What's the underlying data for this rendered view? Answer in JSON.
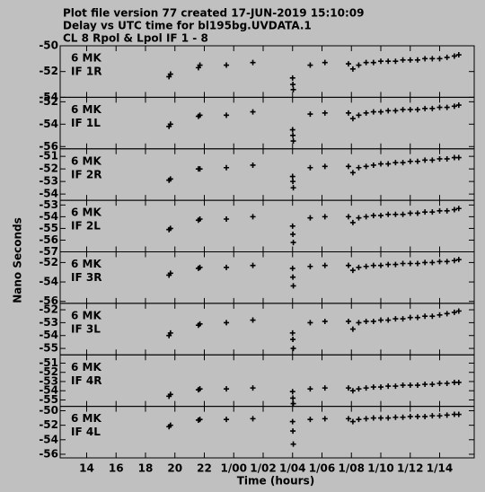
{
  "header": {
    "lines": [
      "Plot file version 77  created 17-JUN-2019 15:10:09",
      "Delay vs UTC time for bl195bg.UVDATA.1",
      "CL 8  Rpol & Lpol  IF 1 - 8"
    ]
  },
  "ylabel": "Nano Seconds",
  "xlabel": "Time (hours)",
  "chart_data": [
    {
      "type": "scatter",
      "annotations": [
        "6 MK",
        "IF 1R"
      ],
      "xlim": [
        12.2,
        40.35
      ],
      "ylim": [
        -54,
        -50
      ],
      "yticks": [
        -50,
        -52,
        -54
      ],
      "x": [
        19.6,
        19.7,
        21.6,
        21.7,
        23.5,
        25.3,
        28.0,
        28.02,
        28.05,
        29.2,
        30.2,
        31.8,
        32.1,
        32.5,
        33.0,
        33.5,
        34.0,
        34.5,
        35.0,
        35.5,
        36.0,
        36.5,
        37.0,
        37.5,
        38.0,
        38.5,
        39.0,
        39.3
      ],
      "values": [
        -52.4,
        -52.2,
        -51.7,
        -51.5,
        -51.5,
        -51.3,
        -52.5,
        -53.0,
        -53.4,
        -51.5,
        -51.3,
        -51.4,
        -51.8,
        -51.5,
        -51.3,
        -51.3,
        -51.2,
        -51.2,
        -51.2,
        -51.1,
        -51.1,
        -51.1,
        -51.0,
        -51.0,
        -51.0,
        -50.9,
        -50.8,
        -50.7
      ]
    },
    {
      "type": "scatter",
      "annotations": [
        "6 MK",
        "IF 1L"
      ],
      "xlim": [
        12.2,
        40.35
      ],
      "ylim": [
        -56.2,
        -51.6
      ],
      "yticks": [
        -52,
        -54,
        -56
      ],
      "x": [
        19.6,
        19.7,
        21.6,
        21.7,
        23.5,
        25.3,
        28.0,
        28.02,
        28.05,
        29.2,
        30.2,
        31.8,
        32.1,
        32.5,
        33.0,
        33.5,
        34.0,
        34.5,
        35.0,
        35.5,
        36.0,
        36.5,
        37.0,
        37.5,
        38.0,
        38.5,
        39.0,
        39.3
      ],
      "values": [
        -54.2,
        -54.0,
        -53.3,
        -53.2,
        -53.2,
        -52.9,
        -54.5,
        -55.0,
        -55.5,
        -53.1,
        -53.0,
        -53.0,
        -53.5,
        -53.2,
        -53.0,
        -52.9,
        -52.9,
        -52.8,
        -52.8,
        -52.7,
        -52.7,
        -52.7,
        -52.6,
        -52.6,
        -52.5,
        -52.5,
        -52.4,
        -52.3
      ]
    },
    {
      "type": "scatter",
      "annotations": [
        "6 MK",
        "IF 2R"
      ],
      "xlim": [
        12.2,
        40.35
      ],
      "ylim": [
        -54.5,
        -50.4
      ],
      "yticks": [
        -51,
        -52,
        -53,
        -54
      ],
      "x": [
        19.6,
        19.7,
        21.6,
        21.7,
        23.5,
        25.3,
        28.0,
        28.02,
        28.05,
        29.2,
        30.2,
        31.8,
        32.1,
        32.5,
        33.0,
        33.5,
        34.0,
        34.5,
        35.0,
        35.5,
        36.0,
        36.5,
        37.0,
        37.5,
        38.0,
        38.5,
        39.0,
        39.3
      ],
      "values": [
        -52.9,
        -52.8,
        -52.0,
        -52.0,
        -51.9,
        -51.7,
        -52.6,
        -53.0,
        -53.5,
        -51.9,
        -51.8,
        -51.8,
        -52.3,
        -51.9,
        -51.8,
        -51.7,
        -51.6,
        -51.6,
        -51.5,
        -51.5,
        -51.4,
        -51.4,
        -51.3,
        -51.3,
        -51.2,
        -51.2,
        -51.1,
        -51.1
      ]
    },
    {
      "type": "scatter",
      "annotations": [
        "6 MK",
        "IF 2L"
      ],
      "xlim": [
        12.2,
        40.35
      ],
      "ylim": [
        -57,
        -52.6
      ],
      "yticks": [
        -53,
        -54,
        -55,
        -56,
        -57
      ],
      "x": [
        19.6,
        19.7,
        21.6,
        21.7,
        23.5,
        25.3,
        28.0,
        28.02,
        28.05,
        29.2,
        30.2,
        31.8,
        32.1,
        32.5,
        33.0,
        33.5,
        34.0,
        34.5,
        35.0,
        35.5,
        36.0,
        36.5,
        37.0,
        37.5,
        38.0,
        38.5,
        39.0,
        39.3
      ],
      "values": [
        -55.1,
        -55.0,
        -54.3,
        -54.2,
        -54.2,
        -54.0,
        -54.8,
        -55.5,
        -56.2,
        -54.1,
        -54.0,
        -54.0,
        -54.5,
        -54.1,
        -54.0,
        -53.9,
        -53.9,
        -53.8,
        -53.8,
        -53.8,
        -53.7,
        -53.7,
        -53.6,
        -53.6,
        -53.5,
        -53.5,
        -53.4,
        -53.3
      ]
    },
    {
      "type": "scatter",
      "annotations": [
        "6 MK",
        "IF 3R"
      ],
      "xlim": [
        12.2,
        40.35
      ],
      "ylim": [
        -56.2,
        -50.9
      ],
      "yticks": [
        -52,
        -54,
        -56
      ],
      "x": [
        19.6,
        19.7,
        21.6,
        21.7,
        23.5,
        25.3,
        28.0,
        28.02,
        28.05,
        29.2,
        30.2,
        31.8,
        32.1,
        32.5,
        33.0,
        33.5,
        34.0,
        34.5,
        35.0,
        35.5,
        36.0,
        36.5,
        37.0,
        37.5,
        38.0,
        38.5,
        39.0,
        39.3
      ],
      "values": [
        -53.3,
        -53.1,
        -52.6,
        -52.5,
        -52.5,
        -52.3,
        -52.6,
        -53.5,
        -54.4,
        -52.4,
        -52.3,
        -52.3,
        -52.8,
        -52.5,
        -52.4,
        -52.3,
        -52.3,
        -52.2,
        -52.2,
        -52.1,
        -52.1,
        -52.1,
        -52.0,
        -52.0,
        -51.9,
        -51.9,
        -51.8,
        -51.7
      ]
    },
    {
      "type": "scatter",
      "annotations": [
        "6 MK",
        "IF 3L"
      ],
      "xlim": [
        12.2,
        40.35
      ],
      "ylim": [
        -55.5,
        -51.5
      ],
      "yticks": [
        -52,
        -53,
        -54,
        -55
      ],
      "x": [
        19.6,
        19.7,
        21.6,
        21.7,
        23.5,
        25.3,
        28.0,
        28.02,
        28.05,
        29.2,
        30.2,
        31.8,
        32.1,
        32.5,
        33.0,
        33.5,
        34.0,
        34.5,
        35.0,
        35.5,
        36.0,
        36.5,
        37.0,
        37.5,
        38.0,
        38.5,
        39.0,
        39.3
      ],
      "values": [
        -54.0,
        -53.8,
        -53.2,
        -53.1,
        -53.0,
        -52.8,
        -53.8,
        -54.3,
        -55.0,
        -53.0,
        -52.9,
        -52.9,
        -53.5,
        -53.0,
        -52.9,
        -52.9,
        -52.8,
        -52.8,
        -52.7,
        -52.7,
        -52.6,
        -52.6,
        -52.5,
        -52.5,
        -52.4,
        -52.3,
        -52.2,
        -52.1
      ]
    },
    {
      "type": "scatter",
      "annotations": [
        "6 MK",
        "IF 4R"
      ],
      "xlim": [
        12.2,
        40.35
      ],
      "ylim": [
        -55.7,
        -50.1
      ],
      "yticks": [
        -51,
        -52,
        -53,
        -54,
        -55
      ],
      "x": [
        19.6,
        19.7,
        21.6,
        21.7,
        23.5,
        25.3,
        28.0,
        28.02,
        28.05,
        29.2,
        30.2,
        31.8,
        32.1,
        32.5,
        33.0,
        33.5,
        34.0,
        34.5,
        35.0,
        35.5,
        36.0,
        36.5,
        37.0,
        37.5,
        38.0,
        38.5,
        39.0,
        39.3
      ],
      "values": [
        -54.6,
        -54.4,
        -53.9,
        -53.8,
        -53.8,
        -53.7,
        -54.1,
        -54.8,
        -55.4,
        -53.8,
        -53.7,
        -53.7,
        -54.0,
        -53.8,
        -53.7,
        -53.6,
        -53.6,
        -53.5,
        -53.5,
        -53.4,
        -53.4,
        -53.4,
        -53.3,
        -53.3,
        -53.2,
        -53.2,
        -53.1,
        -53.1
      ]
    },
    {
      "type": "scatter",
      "annotations": [
        "6 MK",
        "IF 4L"
      ],
      "xlim": [
        12.2,
        40.35
      ],
      "ylim": [
        -56.5,
        -49.4
      ],
      "yticks": [
        -50,
        -52,
        -54,
        -56
      ],
      "xticks": [
        {
          "value": 14,
          "label": "14"
        },
        {
          "value": 16,
          "label": "16"
        },
        {
          "value": 18,
          "label": "18"
        },
        {
          "value": 20,
          "label": "20"
        },
        {
          "value": 22,
          "label": "22"
        },
        {
          "value": 24,
          "label": "1/00"
        },
        {
          "value": 26,
          "label": "1/02"
        },
        {
          "value": 28,
          "label": "1/04"
        },
        {
          "value": 30,
          "label": "1/06"
        },
        {
          "value": 32,
          "label": "1/08"
        },
        {
          "value": 34,
          "label": "1/10"
        },
        {
          "value": 36,
          "label": "1/12"
        },
        {
          "value": 38,
          "label": "1/14"
        }
      ],
      "x": [
        19.6,
        19.7,
        21.6,
        21.7,
        23.5,
        25.3,
        28.0,
        28.02,
        28.05,
        29.2,
        30.2,
        31.8,
        32.1,
        32.5,
        33.0,
        33.5,
        34.0,
        34.5,
        35.0,
        35.5,
        36.0,
        36.5,
        37.0,
        37.5,
        38.0,
        38.5,
        39.0,
        39.3
      ],
      "values": [
        -52.2,
        -52.0,
        -51.3,
        -51.2,
        -51.2,
        -51.1,
        -51.5,
        -52.8,
        -54.6,
        -51.2,
        -51.1,
        -51.1,
        -51.5,
        -51.2,
        -51.1,
        -51.0,
        -51.0,
        -51.0,
        -50.9,
        -50.9,
        -50.8,
        -50.8,
        -50.8,
        -50.7,
        -50.7,
        -50.6,
        -50.5,
        -50.5
      ]
    }
  ]
}
